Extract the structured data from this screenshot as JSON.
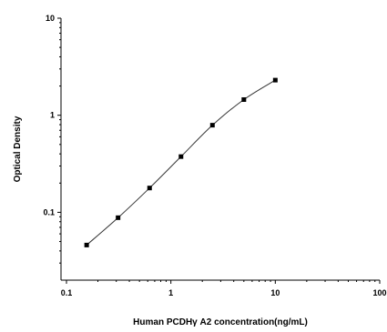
{
  "chart_data": {
    "type": "scatter",
    "xlabel": "Human PCDHγ A2 concentration(ng/mL)",
    "ylabel": "Optical Density",
    "x_scale": "log",
    "y_scale": "log",
    "xlim": [
      0.1,
      100
    ],
    "ylim": [
      0.02,
      10
    ],
    "x_ticks": [
      {
        "value": 0.1,
        "label": "0.1"
      },
      {
        "value": 1,
        "label": "1"
      },
      {
        "value": 10,
        "label": "10"
      },
      {
        "value": 100,
        "label": "100"
      }
    ],
    "y_ticks": [
      {
        "value": 0.1,
        "label": "0.1"
      },
      {
        "value": 1,
        "label": "1"
      },
      {
        "value": 10,
        "label": "10"
      }
    ],
    "grid": false,
    "series": [
      {
        "x": [
          0.156,
          0.312,
          0.625,
          1.25,
          2.5,
          5,
          10
        ],
        "y": [
          0.046,
          0.088,
          0.178,
          0.375,
          0.79,
          1.45,
          2.3
        ],
        "marker": "square",
        "fit_line": true
      }
    ],
    "colors": {
      "points": "#000000",
      "curve": "#333333",
      "axes": "#000000"
    }
  }
}
